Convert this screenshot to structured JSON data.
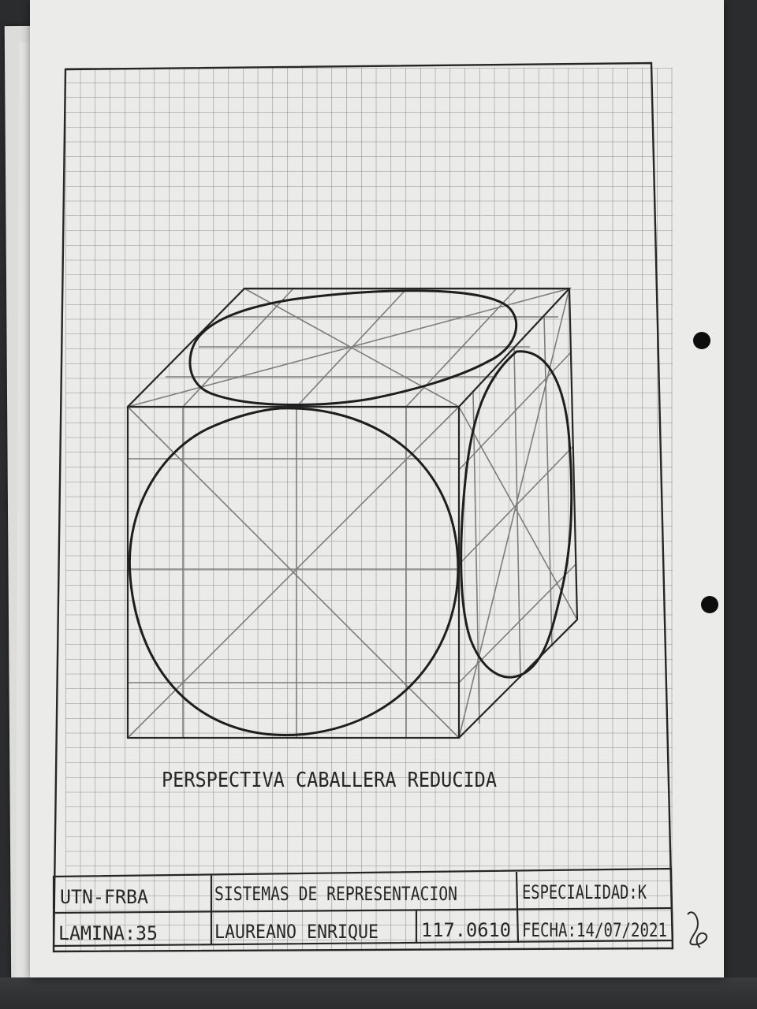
{
  "drawing": {
    "title": "PERSPECTIVA CABALLERA REDUCIDA"
  },
  "title_block": {
    "institution": "UTN-FRBA",
    "subject": "SISTEMAS DE REPRESENTACION",
    "specialty": "ESPECIALIDAD:K",
    "sheet_number": "LAMINA:35",
    "student_name": "LAUREANO ENRIQUE",
    "student_id": "117.0610",
    "date": "FECHA:14/07/2021"
  },
  "colors": {
    "paper": "#ebebea",
    "grid": "#8e8e8e",
    "ink": "#262626",
    "pencil": "#7d7d7d"
  }
}
